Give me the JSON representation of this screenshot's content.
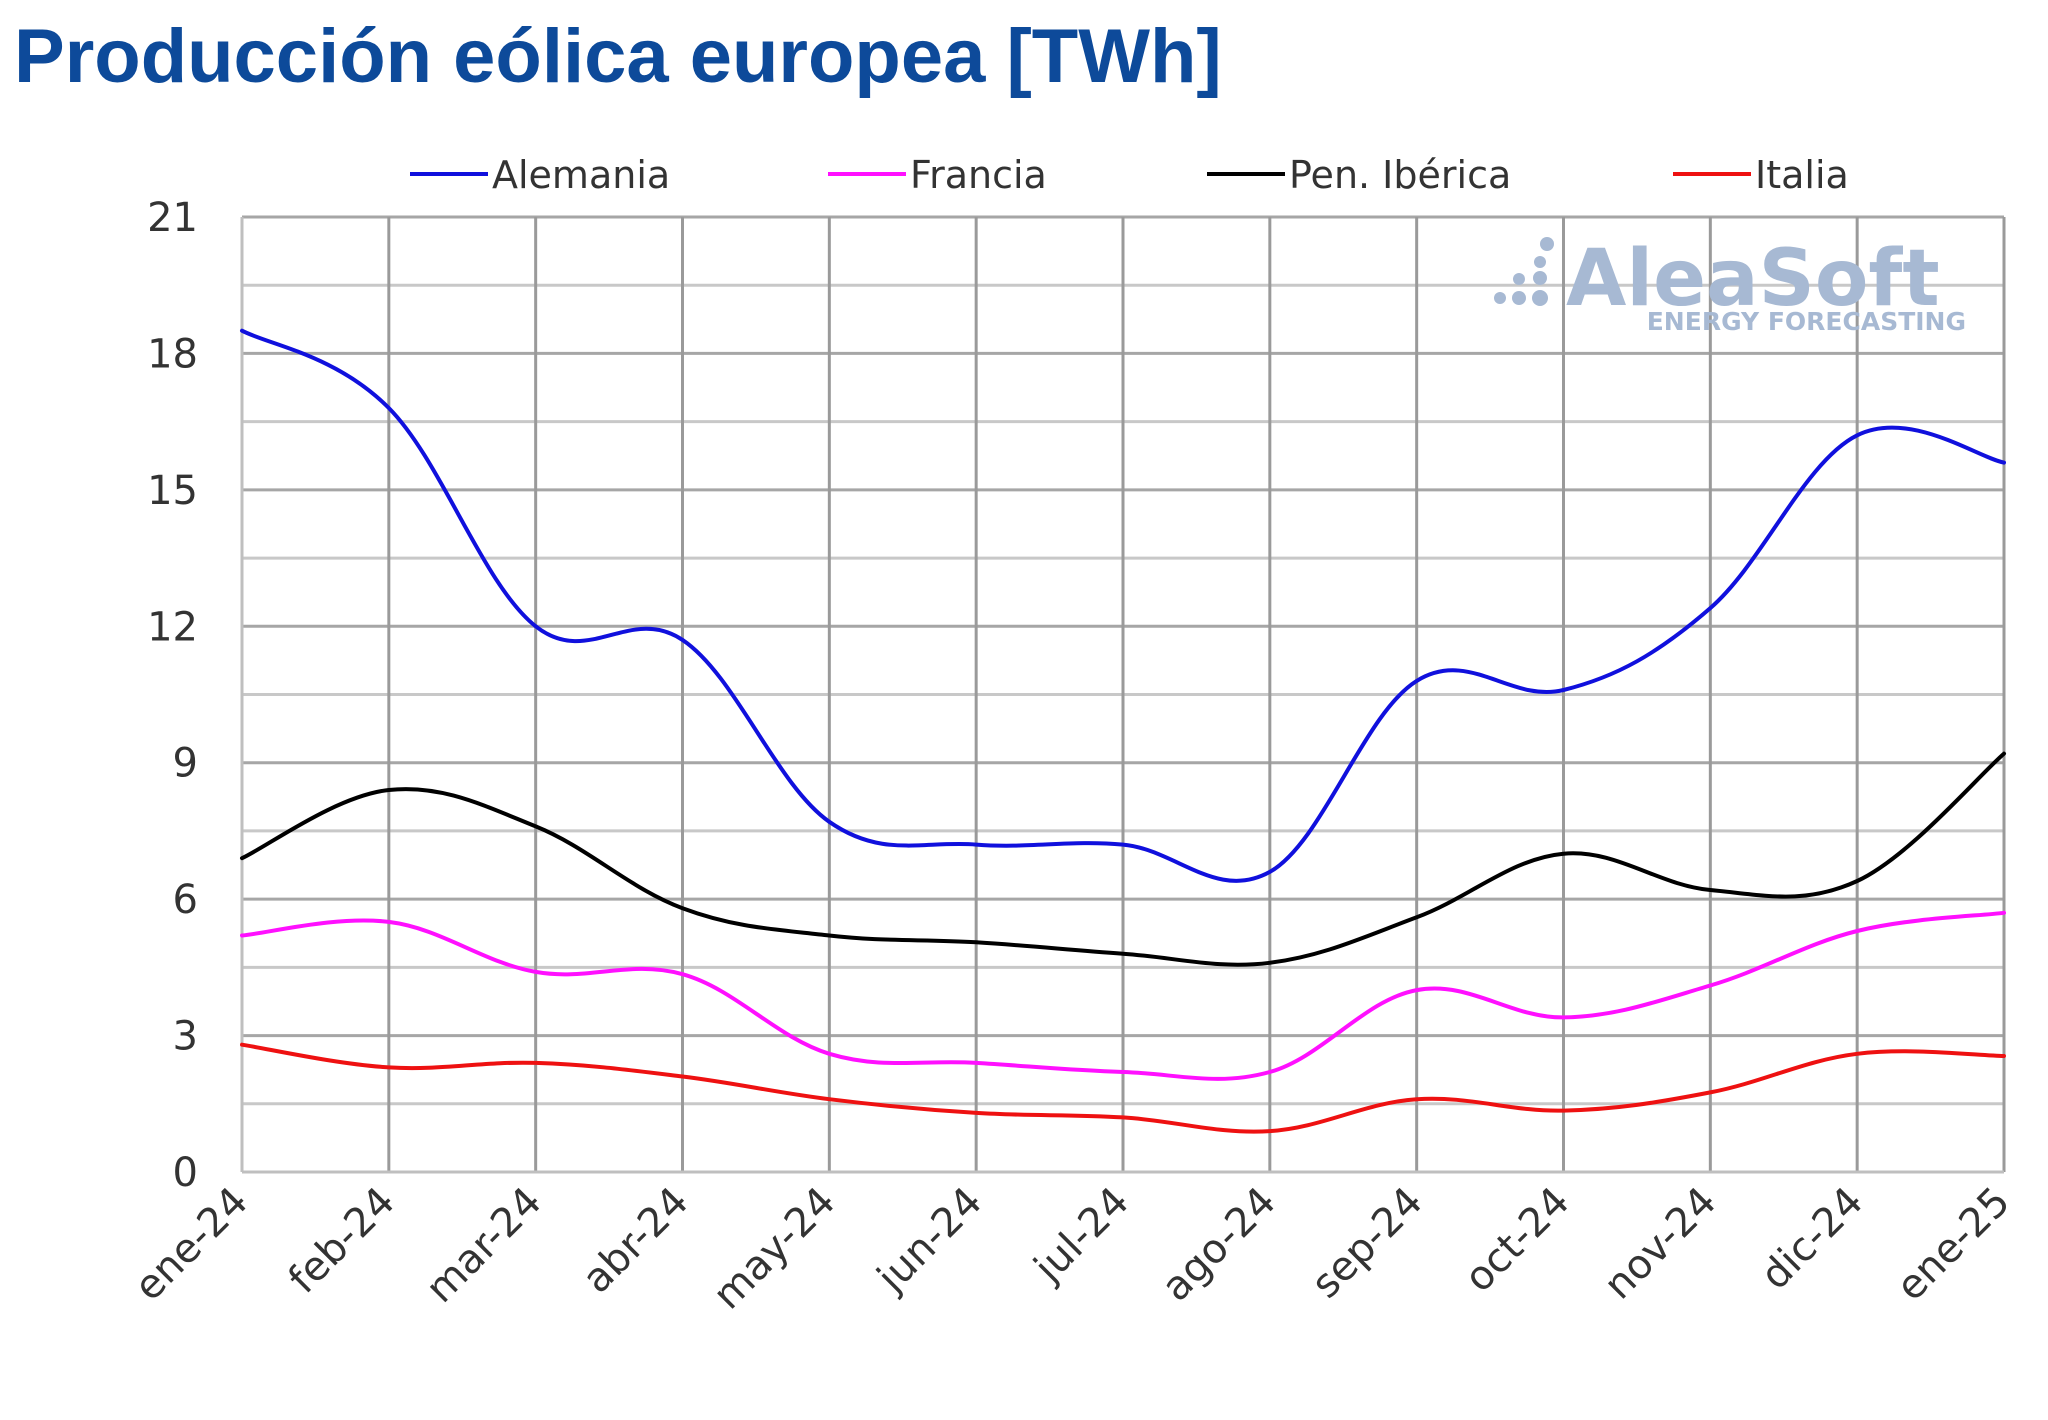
{
  "title": "Producción eólica europea [TWh]",
  "watermark": {
    "brand": "AleaSoft",
    "tagline": "ENERGY FORECASTING"
  },
  "chart_data": {
    "type": "line",
    "title": "Producción eólica europea [TWh]",
    "xlabel": "",
    "ylabel": "",
    "categories": [
      "ene-24",
      "feb-24",
      "mar-24",
      "abr-24",
      "may-24",
      "jun-24",
      "jul-24",
      "ago-24",
      "sep-24",
      "oct-24",
      "nov-24",
      "dic-24",
      "ene-25"
    ],
    "ylim": [
      0,
      21
    ],
    "yticks": [
      "0",
      "3",
      "6",
      "9",
      "12",
      "15",
      "18",
      "21"
    ],
    "grid": true,
    "legend_position": "top",
    "series": [
      {
        "name": "Alemania",
        "color": "#1010dd",
        "values": [
          18.5,
          16.8,
          12.0,
          11.7,
          7.7,
          7.2,
          7.2,
          6.6,
          10.8,
          10.6,
          12.4,
          16.2,
          15.6
        ]
      },
      {
        "name": "Francia",
        "color": "#ff10ff",
        "values": [
          5.2,
          5.5,
          4.4,
          4.35,
          2.6,
          2.4,
          2.2,
          2.2,
          4.0,
          3.4,
          4.1,
          5.3,
          5.7
        ]
      },
      {
        "name": "Pen. Ibérica",
        "color": "#000000",
        "values": [
          6.9,
          8.4,
          7.6,
          5.8,
          5.2,
          5.05,
          4.8,
          4.6,
          5.6,
          7.0,
          6.2,
          6.4,
          9.2
        ]
      },
      {
        "name": "Italia",
        "color": "#ee1111",
        "values": [
          2.8,
          2.3,
          2.4,
          2.1,
          1.6,
          1.3,
          1.2,
          0.9,
          1.6,
          1.35,
          1.75,
          2.6,
          2.55
        ]
      }
    ]
  }
}
